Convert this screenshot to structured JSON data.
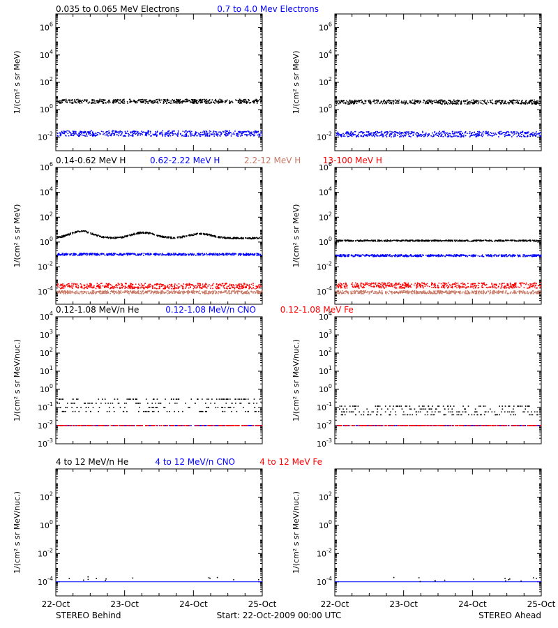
{
  "footer": {
    "left": "STEREO Behind",
    "center": "Start: 22-Oct-2009 00:00 UTC",
    "right": "STEREO Ahead",
    "x_ticks": [
      "22-Oct",
      "23-Oct",
      "24-Oct",
      "25-Oct"
    ]
  },
  "colors": {
    "black": "#000000",
    "blue": "#0000ff",
    "salmon": "#c87864",
    "red": "#ff0000"
  },
  "chart_data": [
    {
      "type": "scatter",
      "panel": "electrons",
      "ylabel": "1/(cm² s sr MeV)",
      "yscale": "log",
      "ylim_exp": [
        -3,
        7
      ],
      "y_tick_labels": [
        {
          "base": "10",
          "exp": "-2",
          "value": -2
        },
        {
          "base": "10",
          "exp": "0",
          "value": 0
        },
        {
          "base": "10",
          "exp": "2",
          "value": 2
        },
        {
          "base": "10",
          "exp": "4",
          "value": 4
        },
        {
          "base": "10",
          "exp": "6",
          "value": 6
        }
      ],
      "legend": [
        {
          "name": "0.035 to 0.065 MeV Electrons",
          "color": "#000000"
        },
        {
          "name": "0.7 to 4.0 Mev Electrons",
          "color": "#0000ff"
        }
      ],
      "series_behind": [
        {
          "color": "#000000",
          "level": 0.6,
          "spread": 0.15
        },
        {
          "color": "#0000ff",
          "level": -1.75,
          "spread": 0.2
        }
      ],
      "series_ahead": [
        {
          "color": "#000000",
          "level": 0.55,
          "spread": 0.15
        },
        {
          "color": "#0000ff",
          "level": -1.8,
          "spread": 0.2
        }
      ]
    },
    {
      "type": "scatter",
      "panel": "protons",
      "ylabel": "1/(cm² s sr MeV)",
      "yscale": "log",
      "ylim_exp": [
        -5,
        6
      ],
      "y_tick_labels": [
        {
          "base": "10",
          "exp": "-4",
          "value": -4
        },
        {
          "base": "10",
          "exp": "-2",
          "value": -2
        },
        {
          "base": "10",
          "exp": "0",
          "value": 0
        },
        {
          "base": "10",
          "exp": "2",
          "value": 2
        },
        {
          "base": "10",
          "exp": "4",
          "value": 4
        },
        {
          "base": "10",
          "exp": "6",
          "value": 6
        }
      ],
      "legend": [
        {
          "name": "0.14-0.62 MeV H",
          "color": "#000000"
        },
        {
          "name": "0.62-2.22 MeV H",
          "color": "#0000ff"
        },
        {
          "name": "2.2-12 MeV H",
          "color": "#c87864"
        },
        {
          "name": "13-100 MeV H",
          "color": "#ff0000"
        }
      ],
      "series_behind": [
        {
          "color": "#000000",
          "level": 0.3,
          "spread": 0.06,
          "bumps": [
            [
              0.12,
              0.55
            ],
            [
              0.42,
              0.45
            ],
            [
              0.7,
              0.35
            ]
          ]
        },
        {
          "color": "#0000ff",
          "level": -1.0,
          "spread": 0.08
        },
        {
          "color": "#ff0000",
          "level": -3.55,
          "spread": 0.22
        },
        {
          "color": "#c87864",
          "level": -4.05,
          "spread": 0.12
        }
      ],
      "series_ahead": [
        {
          "color": "#000000",
          "level": 0.1,
          "spread": 0.05
        },
        {
          "color": "#0000ff",
          "level": -1.1,
          "spread": 0.08
        },
        {
          "color": "#ff0000",
          "level": -3.5,
          "spread": 0.22
        },
        {
          "color": "#c87864",
          "level": -4.05,
          "spread": 0.12
        }
      ]
    },
    {
      "type": "scatter",
      "panel": "heavy-low",
      "ylabel": "1/(cm² s sr MeV/nuc.)",
      "yscale": "log",
      "ylim_exp": [
        -3,
        4
      ],
      "y_tick_labels": [
        {
          "base": "10",
          "exp": "-3",
          "value": -3
        },
        {
          "base": "10",
          "exp": "-2",
          "value": -2
        },
        {
          "base": "10",
          "exp": "-1",
          "value": -1
        },
        {
          "base": "10",
          "exp": "0",
          "value": 0
        },
        {
          "base": "10",
          "exp": "1",
          "value": 1
        },
        {
          "base": "10",
          "exp": "2",
          "value": 2
        },
        {
          "base": "10",
          "exp": "3",
          "value": 3
        },
        {
          "base": "10",
          "exp": "4",
          "value": 4
        }
      ],
      "legend": [
        {
          "name": "0.12-1.08 MeV/n He",
          "color": "#000000"
        },
        {
          "name": "0.12-1.08 MeV/n CNO",
          "color": "#0000ff"
        },
        {
          "name": "0.12-1.08 MeV Fe",
          "color": "#ff0000"
        }
      ],
      "series_behind": [
        {
          "color": "#000000",
          "level": -1.0,
          "spread": 0.5,
          "sparse": true
        },
        {
          "color": "#0000ff",
          "level": -2.0,
          "spread": 0.0,
          "sparse": true
        },
        {
          "color": "#ff0000",
          "level": -2.0,
          "spread": 0.0,
          "sparse": true
        }
      ],
      "series_ahead": [
        {
          "color": "#000000",
          "level": -1.25,
          "spread": 0.35,
          "sparse": true
        },
        {
          "color": "#0000ff",
          "level": -2.0,
          "spread": 0.0,
          "sparse": true
        },
        {
          "color": "#ff0000",
          "level": -2.0,
          "spread": 0.0,
          "sparse": true
        }
      ]
    },
    {
      "type": "scatter",
      "panel": "heavy-high",
      "ylabel": "1/(cm² s sr MeV/nuc.)",
      "yscale": "log",
      "ylim_exp": [
        -5,
        4
      ],
      "y_tick_labels": [
        {
          "base": "10",
          "exp": "-4",
          "value": -4
        },
        {
          "base": "10",
          "exp": "-2",
          "value": -2
        },
        {
          "base": "10",
          "exp": "0",
          "value": 0
        },
        {
          "base": "10",
          "exp": "2",
          "value": 2
        }
      ],
      "legend": [
        {
          "name": "4 to 12 MeV/n He",
          "color": "#000000"
        },
        {
          "name": "4 to 12 MeV/n CNO",
          "color": "#0000ff"
        },
        {
          "name": "4 to 12 MeV Fe",
          "color": "#ff0000"
        }
      ],
      "series_behind": [
        {
          "color": "#0000ff",
          "level": -4.0,
          "spread": 0.0,
          "line": true
        },
        {
          "color": "#000000",
          "level": -3.8,
          "spread": 0.15,
          "sparse": true,
          "few": true
        }
      ],
      "series_ahead": [
        {
          "color": "#0000ff",
          "level": -4.0,
          "spread": 0.0,
          "line": true
        },
        {
          "color": "#000000",
          "level": -3.85,
          "spread": 0.15,
          "sparse": true,
          "few": true
        }
      ]
    }
  ]
}
